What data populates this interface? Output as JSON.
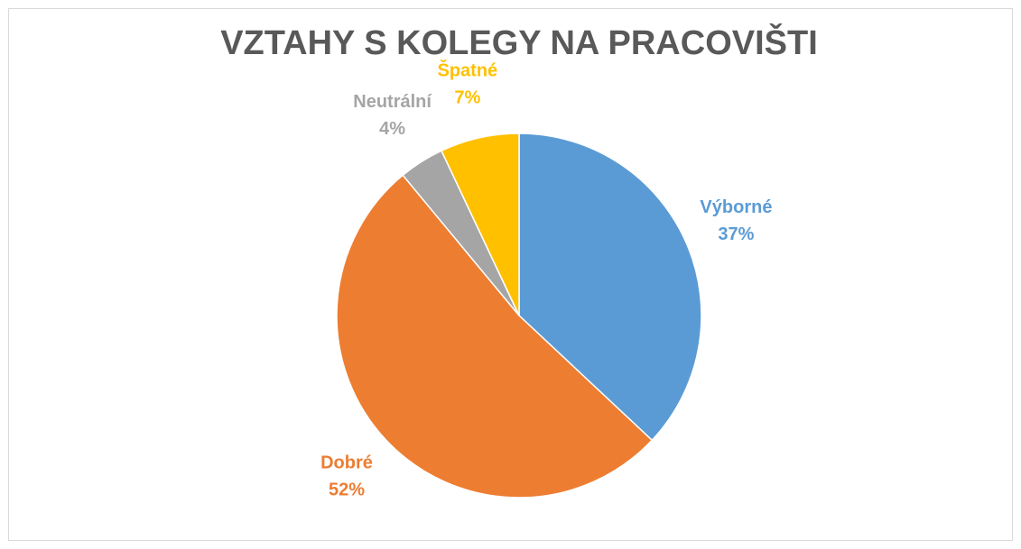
{
  "chart_data": {
    "type": "pie",
    "title": "VZTAHY S KOLEGY NA PRACOVIŠTI",
    "categories": [
      "Výborné",
      "Dobré",
      "Neutrální",
      "Špatné"
    ],
    "values": [
      37,
      52,
      4,
      7
    ],
    "value_labels": [
      "37%",
      "52%",
      "4%",
      "7%"
    ],
    "colors": [
      "#5b9bd5",
      "#ed7d31",
      "#a5a5a5",
      "#ffc000"
    ]
  }
}
